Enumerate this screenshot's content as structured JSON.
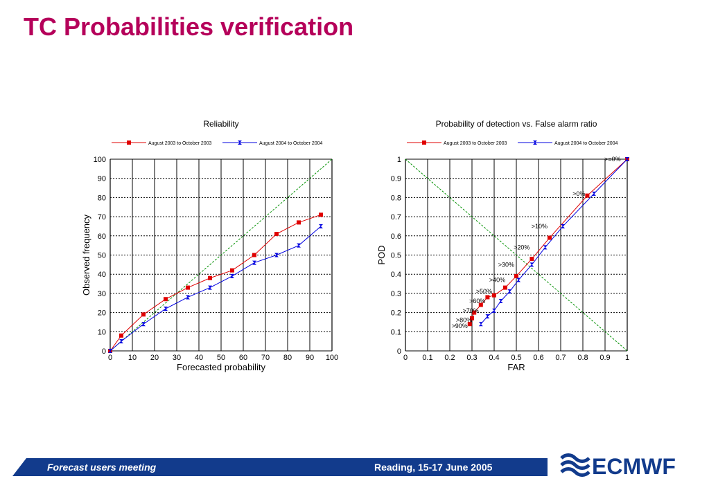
{
  "page": {
    "title": "TC Probabilities verification",
    "footer_left": "Forecast users meeting",
    "footer_right": "Reading, 15-17 June 2005",
    "logo_text": "ECMWF"
  },
  "colors": {
    "title": "#b5005a",
    "series1": "#e00000",
    "series2": "#0000e0",
    "diagonal": "#009000",
    "footer": "#123b8c"
  },
  "chart_data": [
    {
      "type": "line",
      "title": "Reliability",
      "xlabel": "Forecasted probability",
      "ylabel": "Observed frequency",
      "xlim": [
        0,
        100
      ],
      "ylim": [
        0,
        100
      ],
      "xticks": [
        "0",
        "10",
        "20",
        "30",
        "40",
        "50",
        "60",
        "70",
        "80",
        "90",
        "100"
      ],
      "yticks": [
        "0",
        "10",
        "20",
        "30",
        "40",
        "50",
        "60",
        "70",
        "80",
        "90",
        "100"
      ],
      "grid": true,
      "legend": "top",
      "reference_line": "diagonal",
      "series": [
        {
          "name": "August 2003 to October 2003",
          "color": "#e00000",
          "marker": "square",
          "x": [
            0,
            5,
            15,
            25,
            35,
            45,
            55,
            65,
            75,
            85,
            95
          ],
          "y": [
            0,
            8,
            19,
            27,
            33,
            38,
            42,
            50,
            61,
            67,
            71
          ]
        },
        {
          "name": "August 2004 to October 2004",
          "color": "#0000e0",
          "marker": "bowtie",
          "x": [
            0,
            5,
            15,
            25,
            35,
            45,
            55,
            65,
            75,
            85,
            95
          ],
          "y": [
            0,
            5,
            14,
            22,
            28,
            33,
            39,
            46,
            50,
            55,
            65
          ]
        }
      ]
    },
    {
      "type": "line",
      "title": "Probability of detection vs. False alarm ratio",
      "xlabel": "FAR",
      "ylabel": "POD",
      "xlim": [
        0,
        1
      ],
      "ylim": [
        0,
        1
      ],
      "xticks": [
        "0",
        "0.1",
        "0.2",
        "0.3",
        "0.4",
        "0.5",
        "0.6",
        "0.7",
        "0.8",
        "0.9",
        "1"
      ],
      "yticks": [
        "0",
        "0.1",
        "0.2",
        "0.3",
        "0.4",
        "0.5",
        "0.6",
        "0.7",
        "0.8",
        "0.9",
        "1"
      ],
      "grid": true,
      "legend": "top",
      "reference_line": "anti-diagonal",
      "series": [
        {
          "name": "August 2003 to October 2003",
          "color": "#e00000",
          "marker": "square",
          "x": [
            0.29,
            0.3,
            0.31,
            0.34,
            0.37,
            0.4,
            0.45,
            0.5,
            0.57,
            0.65,
            0.82,
            1.0
          ],
          "y": [
            0.14,
            0.17,
            0.2,
            0.24,
            0.28,
            0.29,
            0.33,
            0.39,
            0.48,
            0.59,
            0.81,
            1.0
          ]
        },
        {
          "name": "August 2004 to October 2004",
          "color": "#0000e0",
          "marker": "bowtie",
          "x": [
            0.34,
            0.37,
            0.4,
            0.43,
            0.47,
            0.51,
            0.57,
            0.63,
            0.71,
            0.85,
            1.0
          ],
          "y": [
            0.14,
            0.18,
            0.21,
            0.26,
            0.31,
            0.37,
            0.45,
            0.54,
            0.65,
            0.82,
            1.0
          ]
        }
      ],
      "annotations": [
        {
          "text": ">=0%",
          "x": 0.98,
          "y": 1.0
        },
        {
          "text": ">0%",
          "x": 0.82,
          "y": 0.82
        },
        {
          "text": ">10%",
          "x": 0.65,
          "y": 0.65
        },
        {
          "text": ">20%",
          "x": 0.57,
          "y": 0.54
        },
        {
          "text": ">30%",
          "x": 0.5,
          "y": 0.45
        },
        {
          "text": ">40%",
          "x": 0.46,
          "y": 0.37
        },
        {
          "text": ">50%",
          "x": 0.4,
          "y": 0.31
        },
        {
          "text": ">60%",
          "x": 0.37,
          "y": 0.26
        },
        {
          "text": ">70%",
          "x": 0.34,
          "y": 0.21
        },
        {
          "text": ">80%",
          "x": 0.31,
          "y": 0.16
        },
        {
          "text": ">90%",
          "x": 0.29,
          "y": 0.13
        }
      ]
    }
  ]
}
